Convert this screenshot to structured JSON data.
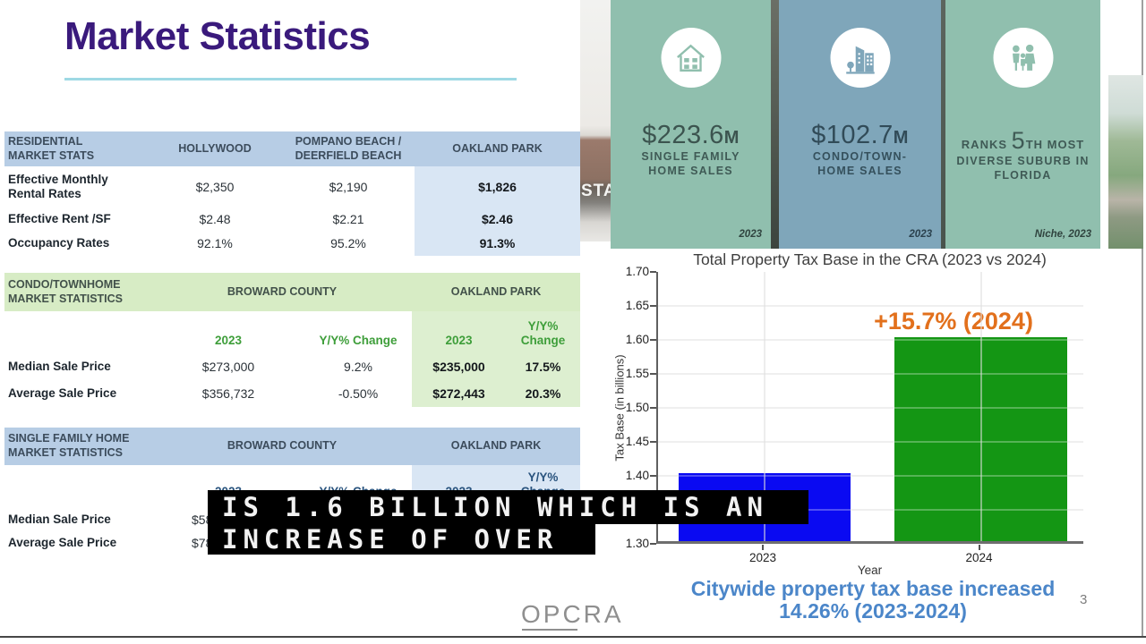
{
  "page": {
    "title": "Market Statistics",
    "page_number": "3",
    "logo_text": "OPCRA"
  },
  "caption": {
    "line1": "IS 1.6 BILLION WHICH IS AN",
    "line2": "INCREASE OF OVER"
  },
  "photos": {
    "left_sign_text": "STA"
  },
  "tables": {
    "residential": {
      "col_headers": [
        "RESIDENTIAL\nMARKET STATS",
        "HOLLYWOOD",
        "POMPANO BEACH /\nDEERFIELD BEACH",
        "OAKLAND PARK"
      ],
      "rows": [
        {
          "label": "Effective Monthly\nRental Rates",
          "values": [
            "$2,350",
            "$2,190",
            "$1,826"
          ]
        },
        {
          "label": "Effective Rent /SF",
          "values": [
            "$2.48",
            "$2.21",
            "$2.46"
          ]
        },
        {
          "label": "Occupancy Rates",
          "values": [
            "92.1%",
            "95.2%",
            "91.3%"
          ]
        }
      ]
    },
    "condo": {
      "title": "CONDO/TOWNHOME\nMARKET STATISTICS",
      "group_headers": [
        "BROWARD COUNTY",
        "OAKLAND PARK"
      ],
      "sub_headers": [
        "2023",
        "Y/Y% Change",
        "2023",
        "Y/Y% Change"
      ],
      "rows": [
        {
          "label": "Median Sale Price",
          "values": [
            "$273,000",
            "9.2%",
            "$235,000",
            "17.5%"
          ]
        },
        {
          "label": "Average Sale Price",
          "values": [
            "$356,732",
            "-0.50%",
            "$272,443",
            "20.3%"
          ]
        }
      ]
    },
    "single_family": {
      "title": "SINGLE FAMILY HOME\nMARKET STATISTICS",
      "group_headers": [
        "BROWARD COUNTY",
        "OAKLAND PARK"
      ],
      "sub_headers": [
        "2023",
        "Y/Y% Change",
        "2023",
        "Y/Y% Change"
      ],
      "rows": [
        {
          "label": "Median Sale Price",
          "visible_value": "$58"
        },
        {
          "label": "Average Sale Price",
          "visible_value": "$78"
        }
      ]
    }
  },
  "stat_cards": [
    {
      "icon": "house-icon",
      "value": "$223.6",
      "value_suffix": "M",
      "label_line1": "SINGLE FAMILY",
      "label_line2": "HOME SALES",
      "source": "2023"
    },
    {
      "icon": "buildings-icon",
      "value": "$102.7",
      "value_suffix": "M",
      "label_line1": "CONDO/TOWN-",
      "label_line2": "HOME SALES",
      "source": "2023"
    },
    {
      "icon": "people-icon",
      "rank_pre": "RANKS",
      "rank_num": "5",
      "rank_post": "TH MOST",
      "label_line2": "DIVERSE SUBURB IN",
      "label_line3": "FLORIDA",
      "source": "Niche, 2023"
    }
  ],
  "chart_data": {
    "type": "bar",
    "title": "Total Property Tax Base in the CRA (2023 vs 2024)",
    "xlabel": "Year",
    "ylabel": "Tax Base (in billions)",
    "categories": [
      "2023",
      "2024"
    ],
    "values": [
      1.4,
      1.6
    ],
    "bar_colors": [
      "#0a0af2",
      "#149614"
    ],
    "ylim": [
      1.3,
      1.7
    ],
    "yticks": [
      1.3,
      1.35,
      1.4,
      1.45,
      1.5,
      1.55,
      1.6,
      1.65,
      1.7
    ],
    "grid": true,
    "legend": "none",
    "annotation": {
      "text": "+15.7% (2024)",
      "color": "#e2701c",
      "target_category": "2024"
    }
  },
  "footer_note": {
    "line1": "Citywide property tax base increased",
    "line2": "14.26% (2023-2024)"
  },
  "colors": {
    "title_purple": "#3a1a7c",
    "underline_teal": "#9ed9e4",
    "table_blue_header": "#b7cde5",
    "table_blue_highlight": "#d9e6f4",
    "table_green_header": "#d7ecc5",
    "table_green_highlight": "#ddefd0",
    "bar_2023_blue": "#0a0af2",
    "bar_2024_green": "#149614",
    "annotation_orange": "#e2701c",
    "footer_blue": "#4b86c9",
    "card_teal": "#90bfae",
    "card_slate_blue": "#7fa6ba",
    "caption_bg": "#000000"
  }
}
